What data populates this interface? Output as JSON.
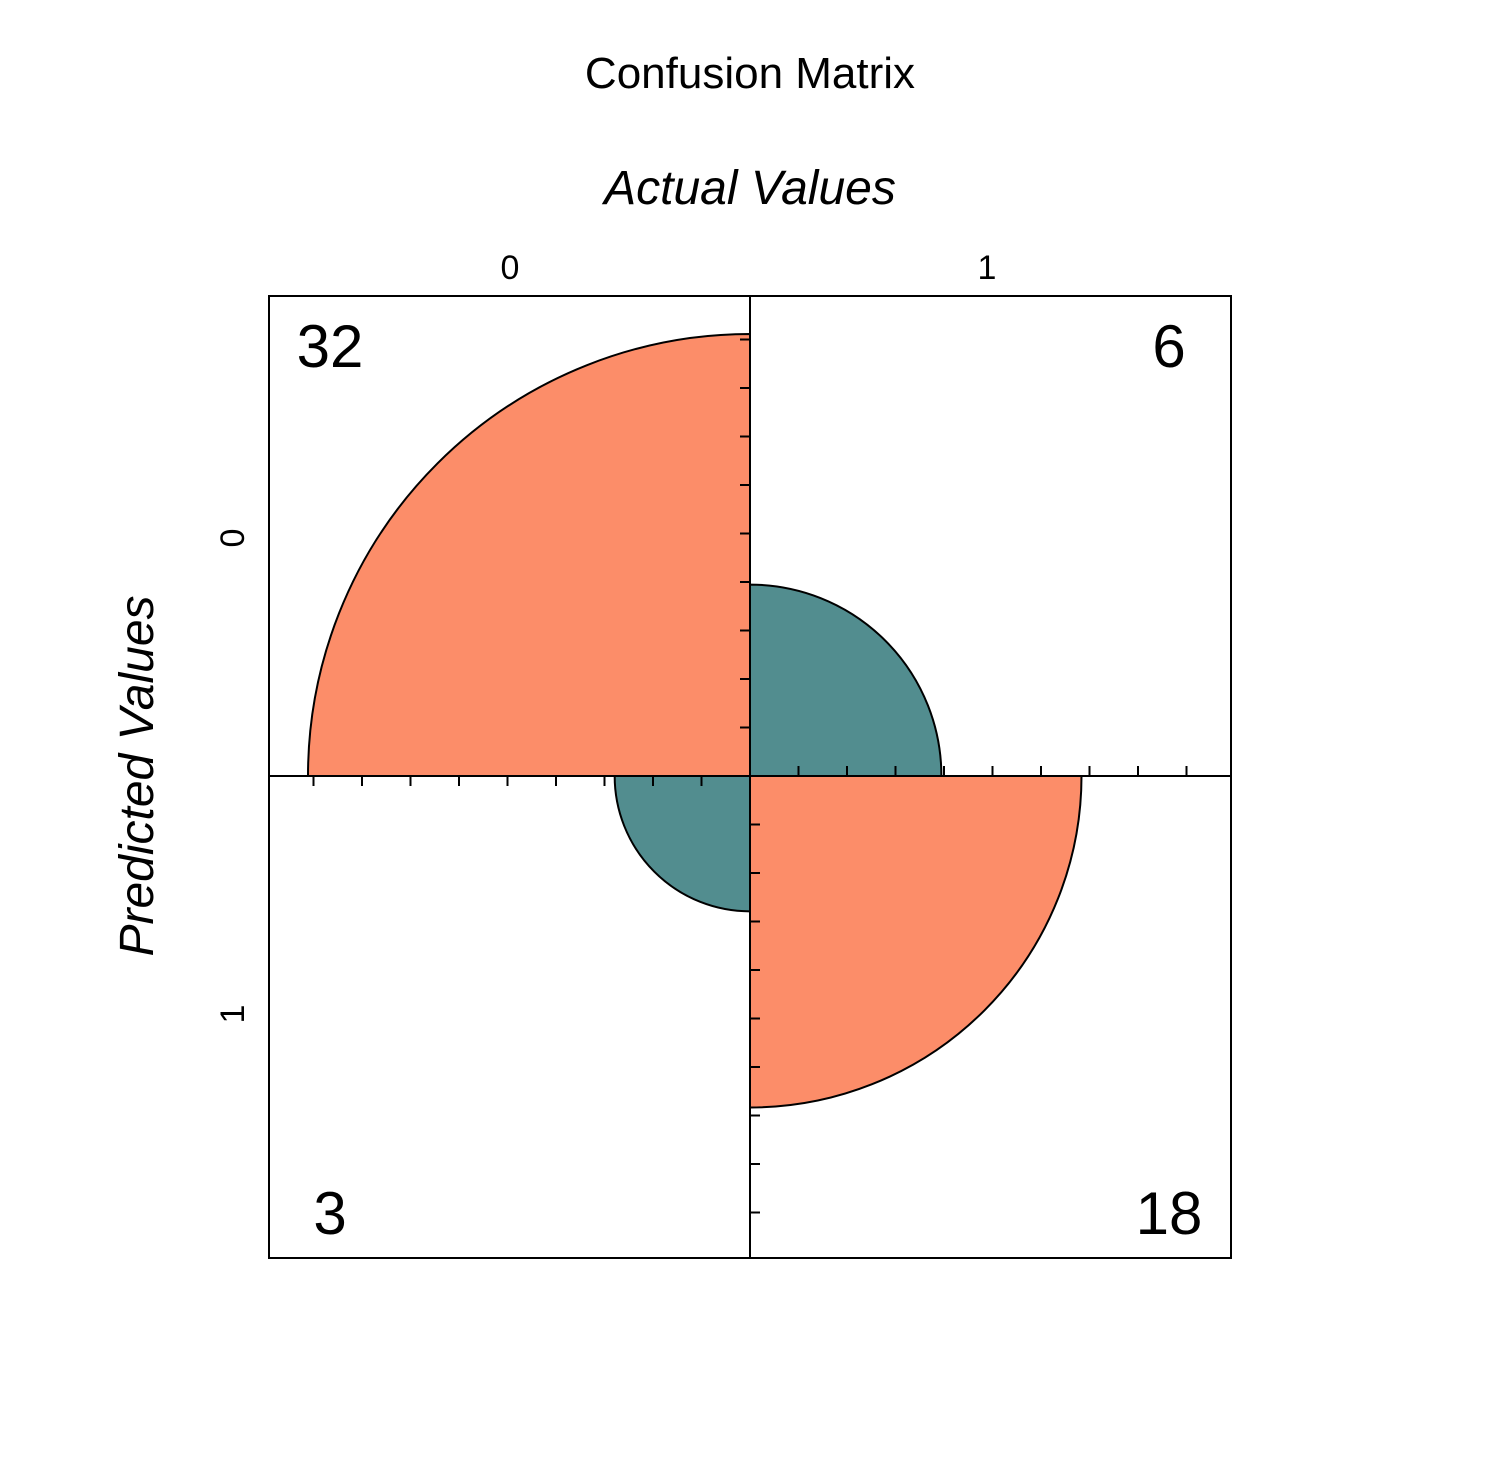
{
  "chart_data": {
    "type": "fourfold",
    "title": "Confusion Matrix",
    "xlabel": "Actual Values",
    "ylabel": "Predicted Values",
    "column_labels": [
      "0",
      "1"
    ],
    "row_labels": [
      "0",
      "1"
    ],
    "matrix": [
      [
        32,
        6
      ],
      [
        3,
        18
      ]
    ],
    "count_labels": {
      "top_left": "32",
      "top_right": "6",
      "bottom_left": "3",
      "bottom_right": "18"
    },
    "colors": {
      "correct": "#FC8D69",
      "incorrect": "#528D8F",
      "outline": "#000000"
    },
    "grid": false
  }
}
